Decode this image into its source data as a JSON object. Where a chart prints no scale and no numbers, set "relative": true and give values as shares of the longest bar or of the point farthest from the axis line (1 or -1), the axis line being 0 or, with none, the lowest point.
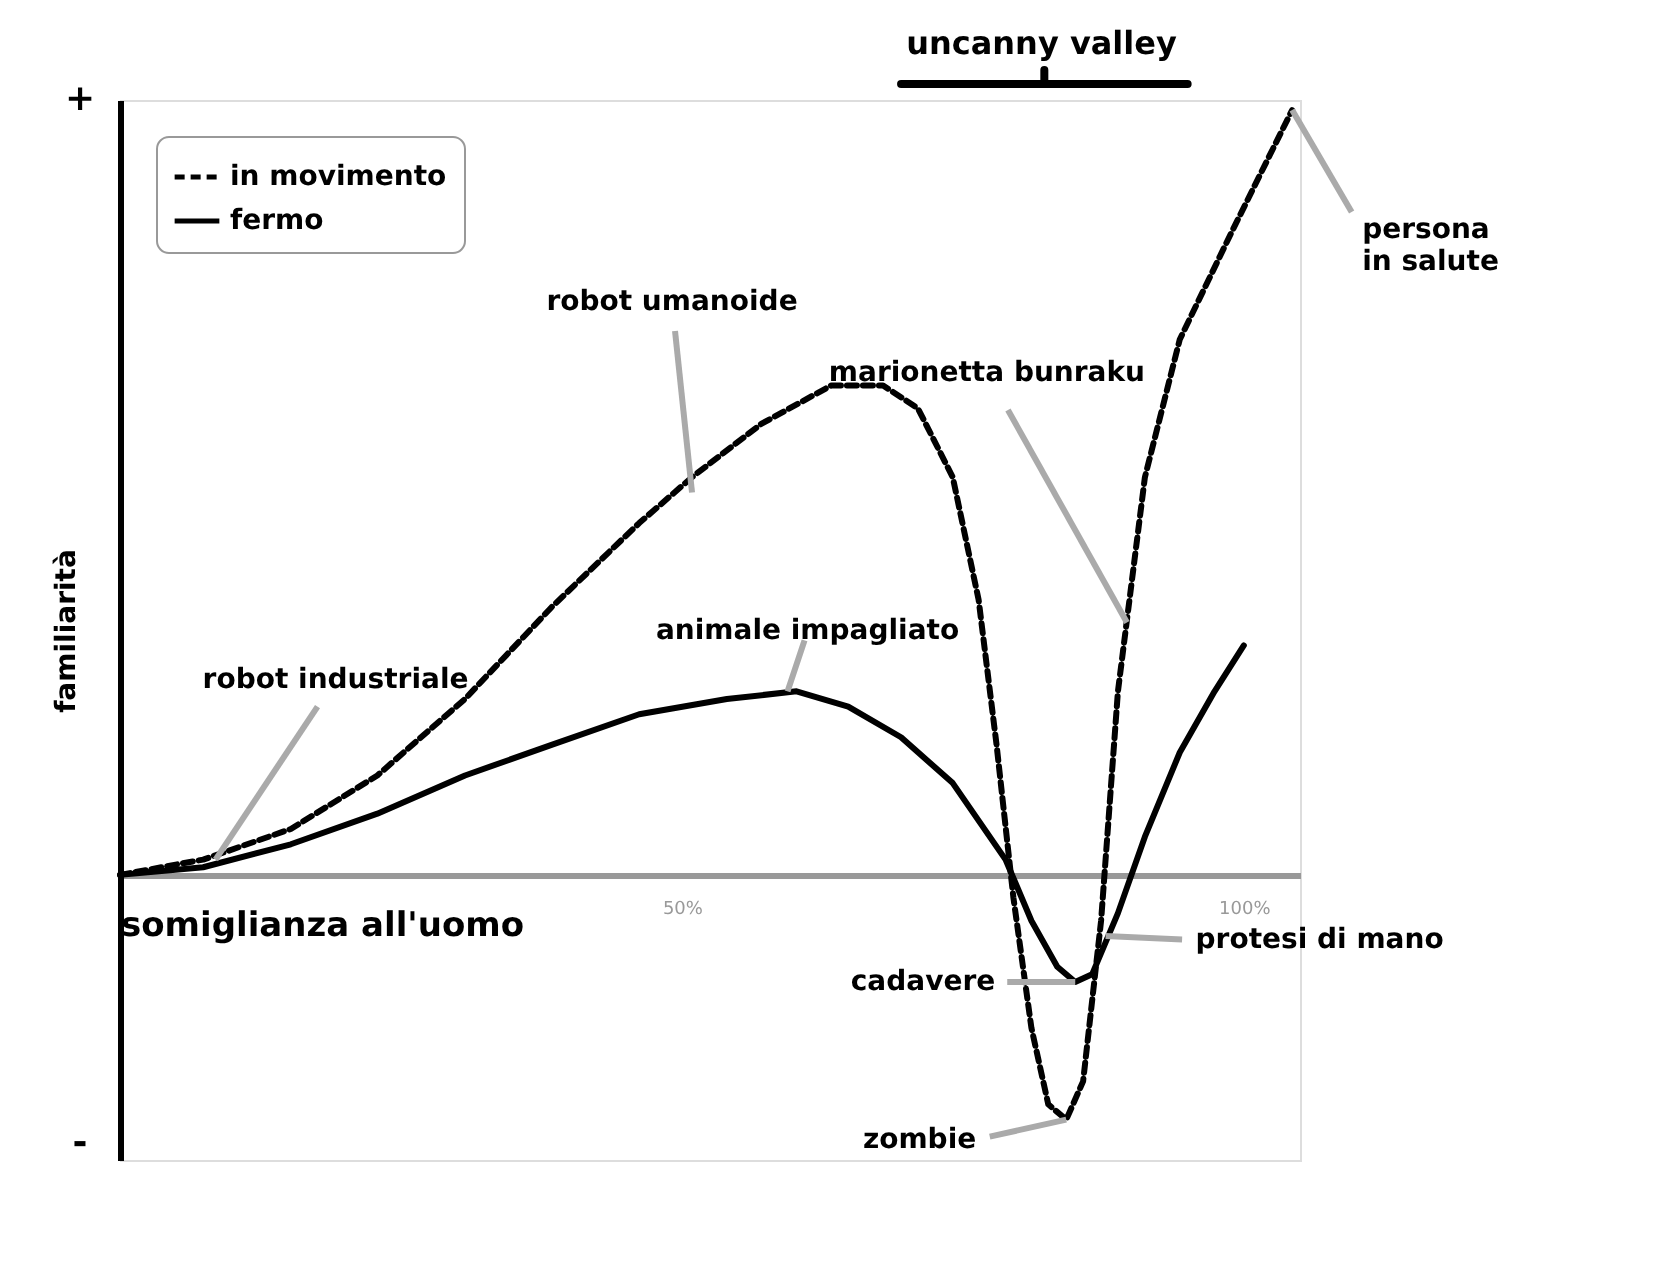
{
  "chart_data": {
    "type": "line",
    "relative": true,
    "xlabel": "somiglianza all'uomo",
    "ylabel": "familiarità",
    "xlim": [
      0,
      105
    ],
    "xticks": [
      {
        "value": 50,
        "label": "50%"
      },
      {
        "value": 100,
        "label": "100%"
      }
    ],
    "legend": "top left",
    "grid": false,
    "series": [
      {
        "name": "in movimento",
        "color": "#000000",
        "line_style": "dashed",
        "x": [
          0,
          7.4,
          15.2,
          22.9,
          30.7,
          38.4,
          46.2,
          50.9,
          57.1,
          63.3,
          67.9,
          71,
          74.1,
          76.4,
          78,
          79.5,
          81.1,
          82.6,
          84.2,
          85.7,
          87.3,
          88.8,
          91.2,
          94.3,
          98.9,
          104.3
        ],
        "values": [
          0,
          0.02,
          0.06,
          0.13,
          0.23,
          0.35,
          0.46,
          0.52,
          0.59,
          0.64,
          0.64,
          0.61,
          0.52,
          0.36,
          0.17,
          -0.03,
          -0.2,
          -0.3,
          -0.32,
          -0.27,
          -0.06,
          0.24,
          0.52,
          0.7,
          0.84,
          1.0
        ]
      },
      {
        "name": "fermo",
        "color": "#000000",
        "line_style": "solid",
        "x": [
          0,
          7.4,
          15.2,
          22.9,
          30.7,
          38.4,
          46.2,
          54,
          60.2,
          64.8,
          69.5,
          74.1,
          78.8,
          81.1,
          83.4,
          85,
          86.5,
          88.8,
          91.2,
          94.3,
          97.4,
          100
        ],
        "values": [
          0,
          0.01,
          0.04,
          0.08,
          0.13,
          0.17,
          0.21,
          0.23,
          0.24,
          0.22,
          0.18,
          0.12,
          0.02,
          -0.06,
          -0.12,
          -0.14,
          -0.13,
          -0.05,
          0.05,
          0.16,
          0.24,
          0.3
        ]
      }
    ],
    "annotations": [
      {
        "text": "robot industriale",
        "x": 8.5,
        "y": 0.02
      },
      {
        "text": "robot umanoide",
        "x": 50.9,
        "y": 0.5
      },
      {
        "text": "animale impagliato",
        "x": 59.4,
        "y": 0.24
      },
      {
        "text": "marionetta bunraku",
        "x": 89.6,
        "y": 0.33
      },
      {
        "text": "persona\nin salute",
        "x": 104.3,
        "y": 1.0
      },
      {
        "text": "cadavere",
        "x": 85,
        "y": -0.14
      },
      {
        "text": "protesi di mano",
        "x": 87.7,
        "y": -0.08
      },
      {
        "text": "zombie",
        "x": 84.2,
        "y": -0.32
      },
      "uncanny valley",
      "+",
      "-"
    ]
  }
}
